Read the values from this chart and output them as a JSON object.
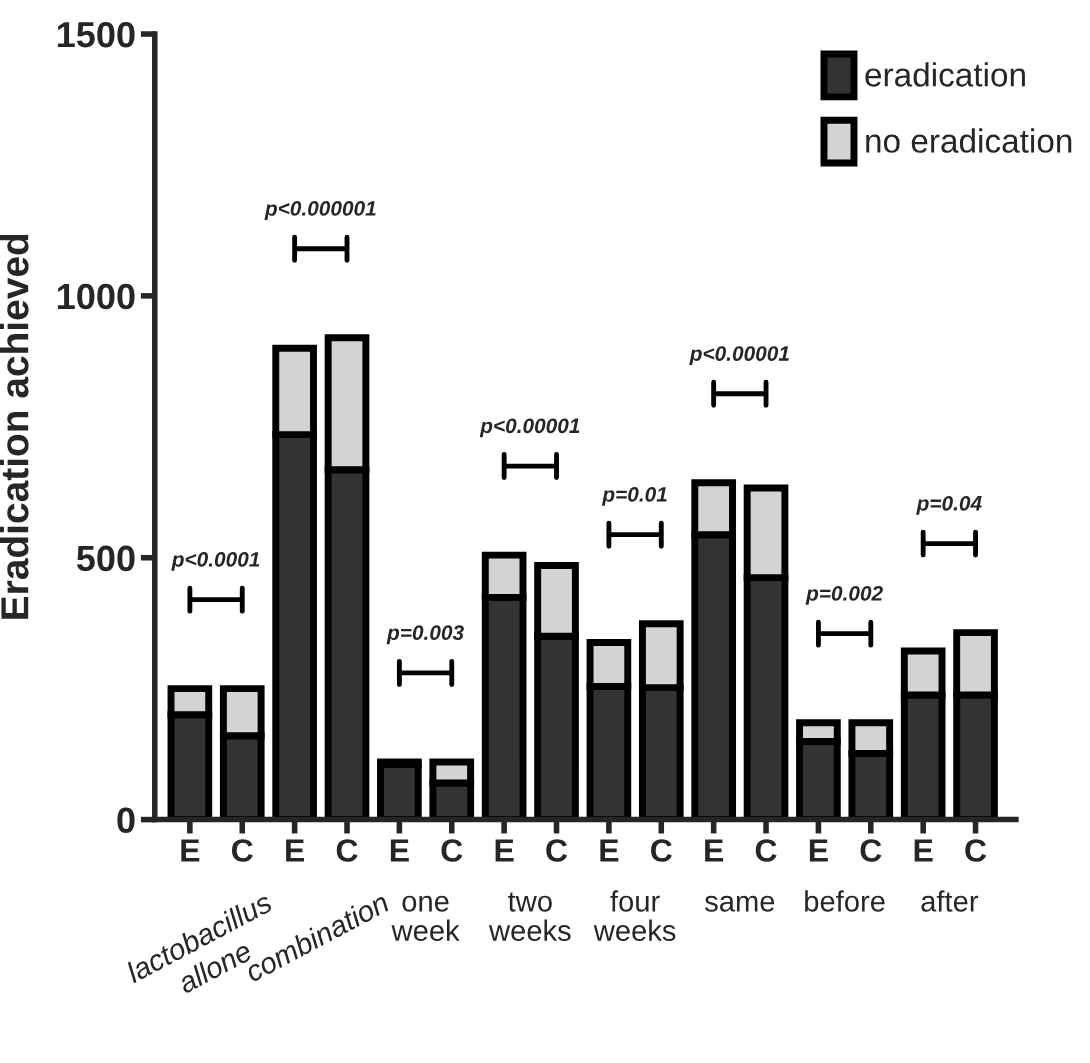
{
  "chart_data": {
    "type": "bar",
    "stacked": true,
    "ylabel": "Eradication achieved",
    "categories": [
      "E",
      "C",
      "E",
      "C",
      "E",
      "C",
      "E",
      "C",
      "E",
      "C",
      "E",
      "C",
      "E",
      "C",
      "E",
      "C"
    ],
    "series": [
      {
        "name": "eradication",
        "color": "#333333",
        "values": [
          200,
          160,
          735,
          668,
          105,
          70,
          424,
          350,
          254,
          252,
          544,
          462,
          149,
          126,
          238,
          238
        ]
      },
      {
        "name": "no eradication",
        "color": "#d3d3d3",
        "values": [
          50,
          90,
          165,
          252,
          5,
          40,
          81,
          135,
          84,
          122,
          99,
          171,
          36,
          59,
          84,
          119
        ]
      }
    ],
    "ylim": [
      0,
      1500
    ],
    "yticks": [
      0,
      500,
      1000,
      1500
    ],
    "grid": false,
    "legend": "top right",
    "annotations": [
      "p<0.0001",
      "p<0.000001",
      "p=0.003",
      "p<0.00001",
      "p=0.01",
      "p<0.00001",
      "p=0.002",
      "p=0.04",
      "lactobacillus\nallone",
      "combination",
      "one\nweek",
      "two\nweeks",
      "four\nweeks",
      "same",
      "before",
      "after"
    ]
  }
}
